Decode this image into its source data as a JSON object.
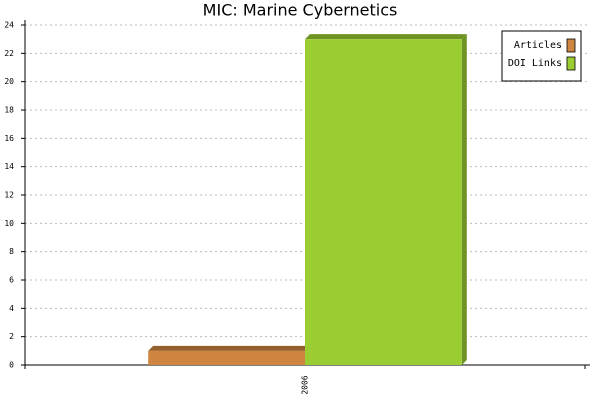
{
  "chart_data": {
    "type": "bar",
    "title": "MIC: Marine Cybernetics",
    "categories": [
      "2006"
    ],
    "series": [
      {
        "name": "Articles",
        "color": "#cd853f",
        "values": [
          1
        ]
      },
      {
        "name": "DOI Links",
        "color": "#9acd32",
        "values": [
          23
        ]
      }
    ],
    "ylim": [
      0,
      24
    ],
    "yticks": [
      0,
      2,
      4,
      6,
      8,
      10,
      12,
      14,
      16,
      18,
      20,
      22,
      24
    ],
    "grid": true,
    "legend": "top-right"
  }
}
